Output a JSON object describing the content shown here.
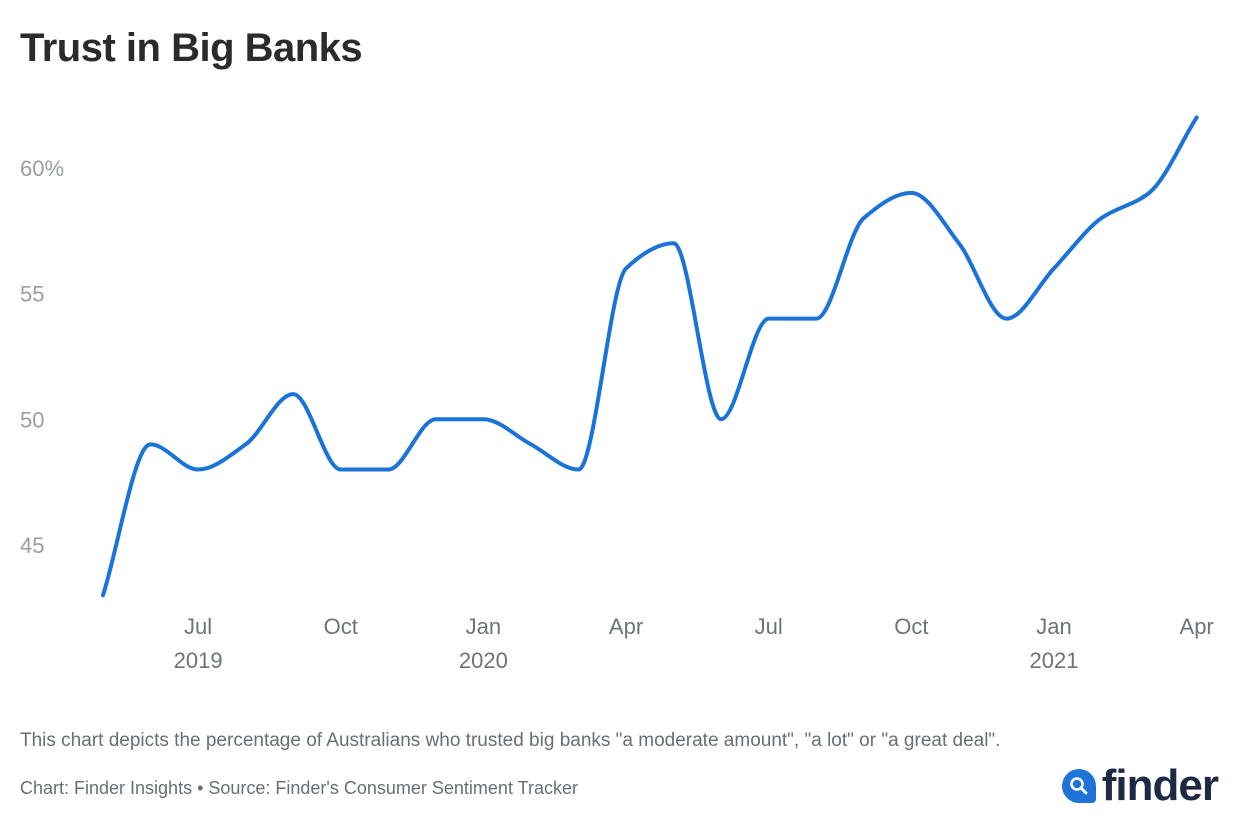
{
  "chart_data": {
    "type": "line",
    "title": "Trust in Big Banks",
    "xlabel": "",
    "ylabel": "",
    "ylim": [
      43,
      62
    ],
    "yticks": [
      "45",
      "50",
      "55",
      "60%"
    ],
    "ytick_values": [
      45,
      50,
      55,
      60
    ],
    "grid": false,
    "legend": "none",
    "line_color": "#1a73d9",
    "x_tick_labels": [
      {
        "month": "2019-07",
        "label": "Jul",
        "year": "2019"
      },
      {
        "month": "2019-10",
        "label": "Oct",
        "year": ""
      },
      {
        "month": "2020-01",
        "label": "Jan",
        "year": "2020"
      },
      {
        "month": "2020-04",
        "label": "Apr",
        "year": ""
      },
      {
        "month": "2020-07",
        "label": "Jul",
        "year": ""
      },
      {
        "month": "2020-10",
        "label": "Oct",
        "year": ""
      },
      {
        "month": "2021-01",
        "label": "Jan",
        "year": "2021"
      },
      {
        "month": "2021-04",
        "label": "Apr",
        "year": ""
      }
    ],
    "x": [
      "2019-05",
      "2019-06",
      "2019-07",
      "2019-08",
      "2019-09",
      "2019-10",
      "2019-11",
      "2019-12",
      "2020-01",
      "2020-02",
      "2020-03",
      "2020-04",
      "2020-05",
      "2020-06",
      "2020-07",
      "2020-08",
      "2020-09",
      "2020-10",
      "2020-11",
      "2020-12",
      "2021-01",
      "2021-02",
      "2021-03",
      "2021-04"
    ],
    "series": [
      {
        "values": [
          43,
          49,
          48,
          49,
          51,
          48,
          48,
          50,
          50,
          49,
          48,
          56,
          57,
          50,
          54,
          54,
          58,
          59,
          57,
          54,
          56,
          58,
          59,
          62
        ]
      }
    ]
  },
  "caption": "This chart depicts the percentage of Australians who trusted big banks \"a moderate amount\", \"a lot\" or \"a great deal\".",
  "source": "Chart: Finder Insights • Source: Finder's Consumer Sentiment Tracker",
  "logo": {
    "text": "finder",
    "icon": "magnifier-icon",
    "color": "#1e73d6"
  }
}
